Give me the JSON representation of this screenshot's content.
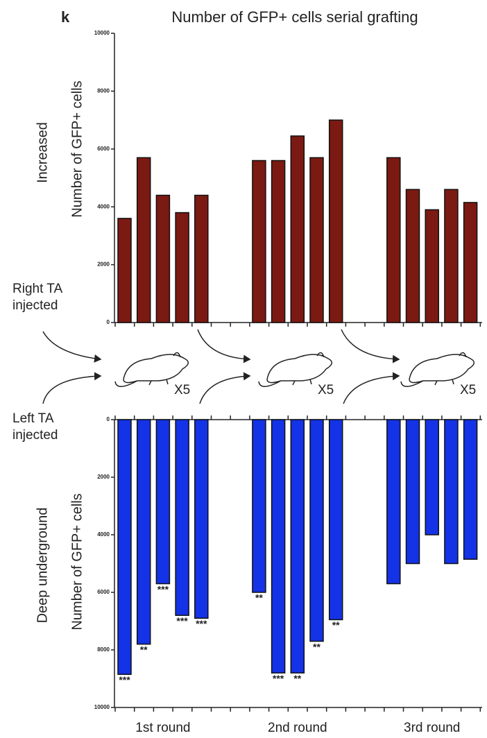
{
  "panel_label": "k",
  "side_labels": {
    "top": "Increased",
    "bottom": "Deep underground",
    "right": "Right TA injected",
    "left": "Left TA injected"
  },
  "multipliers": [
    "X5",
    "X5",
    "X5"
  ],
  "chart_data": [
    {
      "type": "bar",
      "title": "Number of GFP+ cells serial grafting",
      "y_label": "Number of GFP+ cells",
      "groups": [
        "1st round",
        "2nd round",
        "3rd round"
      ],
      "color": "#7b1a12",
      "values": [
        3600,
        5700,
        4400,
        3800,
        4400,
        5600,
        5600,
        6450,
        5700,
        7000,
        5700,
        4600,
        3900,
        4600,
        4150
      ],
      "ylim": [
        0,
        10000
      ],
      "yticks": [
        0,
        2000,
        4000,
        6000,
        8000,
        10000
      ],
      "inverted": false
    },
    {
      "type": "bar",
      "y_label": "Number of GFP+ cells",
      "color": "#1432e6",
      "values": [
        8850,
        7800,
        5700,
        6800,
        6900,
        6000,
        8800,
        8800,
        7700,
        6950,
        5700,
        5000,
        4000,
        5000,
        4850
      ],
      "annotations": [
        "***",
        "**",
        "***",
        "***",
        "***",
        "**",
        "***",
        "**",
        "**",
        "**",
        null,
        null,
        null,
        null,
        null
      ],
      "ylim": [
        0,
        10000
      ],
      "yticks": [
        0,
        2000,
        4000,
        6000,
        8000,
        10000
      ],
      "inverted": true
    }
  ]
}
